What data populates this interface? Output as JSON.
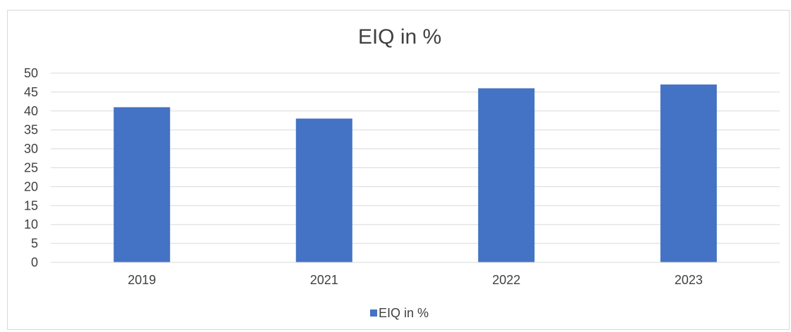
{
  "chart_data": {
    "type": "bar",
    "title": "EIQ in %",
    "categories": [
      "2019",
      "2021",
      "2022",
      "2023"
    ],
    "series": [
      {
        "name": "EIQ in %",
        "values": [
          41,
          38,
          46,
          47
        ]
      }
    ],
    "xlabel": "",
    "ylabel": "",
    "ylim": [
      0,
      50
    ],
    "yticks": [
      "0",
      "5",
      "10",
      "15",
      "20",
      "25",
      "30",
      "35",
      "40",
      "45",
      "50"
    ],
    "grid": true,
    "legend_position": "bottom",
    "colors": {
      "bar": "#4472c4",
      "grid": "#d9d9d9",
      "text": "#404040"
    }
  }
}
